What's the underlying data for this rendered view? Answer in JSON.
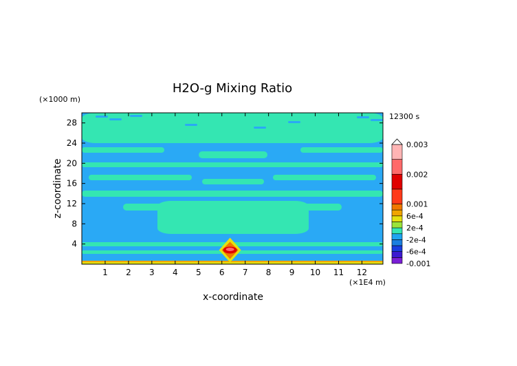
{
  "chart_data": {
    "type": "heatmap",
    "title": "H2O-g Mixing Ratio",
    "xlabel": "x-coordinate",
    "ylabel": "z-coordinate",
    "x_unit": "(×1E4 m)",
    "y_unit": "(×1000 m)",
    "time_label": "12300 s",
    "xlim": [
      0,
      12.9
    ],
    "ylim": [
      0,
      30
    ],
    "x_ticks": [
      1,
      2,
      3,
      4,
      5,
      6,
      7,
      8,
      9,
      10,
      11,
      12
    ],
    "y_ticks": [
      4,
      8,
      12,
      16,
      20,
      24,
      28
    ],
    "colorbar": {
      "levels": [
        -0.001,
        -0.0008,
        -0.0006,
        -0.0004,
        -0.0002,
        0,
        0.0002,
        0.0004,
        0.0006,
        0.0008,
        0.001,
        0.0015,
        0.002,
        0.0025,
        0.003
      ],
      "colors": [
        "#7a1fd6",
        "#3c1ad0",
        "#1a3ee0",
        "#1c7fe0",
        "#1fa4f0",
        "#34e6b2",
        "#9ae43a",
        "#e5e010",
        "#f0a500",
        "#f07800",
        "#ff3a1a",
        "#e00000",
        "#ff6a6a",
        "#ffb4b4"
      ],
      "tick_labels": [
        {
          "value": -0.001,
          "label": "-0.001"
        },
        {
          "value": -0.0006,
          "label": "-6e-4"
        },
        {
          "value": -0.0002,
          "label": "-2e-4"
        },
        {
          "value": 0.0002,
          "label": "2e-4"
        },
        {
          "value": 0.0006,
          "label": "6e-4"
        },
        {
          "value": 0.001,
          "label": "0.001"
        },
        {
          "value": 0.002,
          "label": "0.002"
        },
        {
          "value": 0.003,
          "label": "0.003"
        }
      ],
      "extend": "max"
    },
    "background_color": "#2aa9f5",
    "band_color": "#34e6b2"
  }
}
